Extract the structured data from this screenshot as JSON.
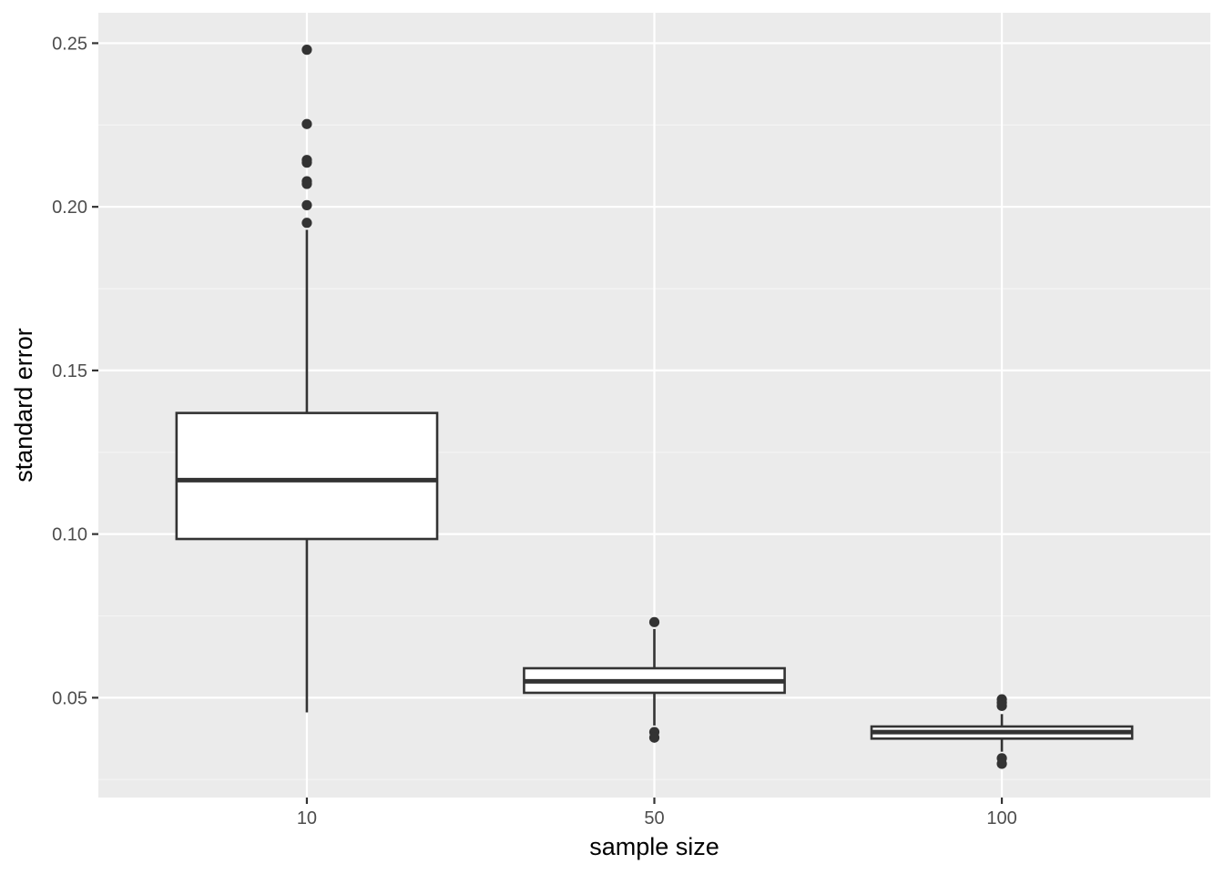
{
  "chart_data": {
    "type": "boxplot",
    "title": "",
    "xlabel": "sample size",
    "ylabel": "standard error",
    "categories": [
      "10",
      "50",
      "100"
    ],
    "ylim": [
      0.0195,
      0.2593
    ],
    "y_ticks": [
      0.05,
      0.1,
      0.15,
      0.2,
      0.25
    ],
    "y_tick_labels": [
      "0.05",
      "0.10",
      "0.15",
      "0.20",
      "0.25"
    ],
    "grid": true,
    "legend": "none",
    "boxes": [
      {
        "category": "10",
        "whisker_low": 0.0455,
        "q1": 0.0985,
        "median": 0.1165,
        "q3": 0.137,
        "whisker_high": 0.193,
        "outliers": [
          0.248,
          0.2253,
          0.2143,
          0.2135,
          0.2078,
          0.207,
          0.2005,
          0.1951
        ]
      },
      {
        "category": "50",
        "whisker_low": 0.0415,
        "q1": 0.0515,
        "median": 0.055,
        "q3": 0.059,
        "whisker_high": 0.071,
        "outliers": [
          0.0731,
          0.0395,
          0.0378
        ]
      },
      {
        "category": "100",
        "whisker_low": 0.0335,
        "q1": 0.0375,
        "median": 0.0395,
        "q3": 0.0412,
        "whisker_high": 0.045,
        "outliers": [
          0.0495,
          0.0485,
          0.0475,
          0.0315,
          0.0298
        ]
      }
    ],
    "colors": {
      "panel_background": "#ebebeb",
      "grid_major": "#ffffff",
      "grid_minor": "#f5f5f5",
      "box_fill": "#ffffff",
      "box_stroke": "#333333",
      "point": "#333333",
      "tick_text": "#4d4d4d",
      "tick_mark": "#333333"
    }
  }
}
